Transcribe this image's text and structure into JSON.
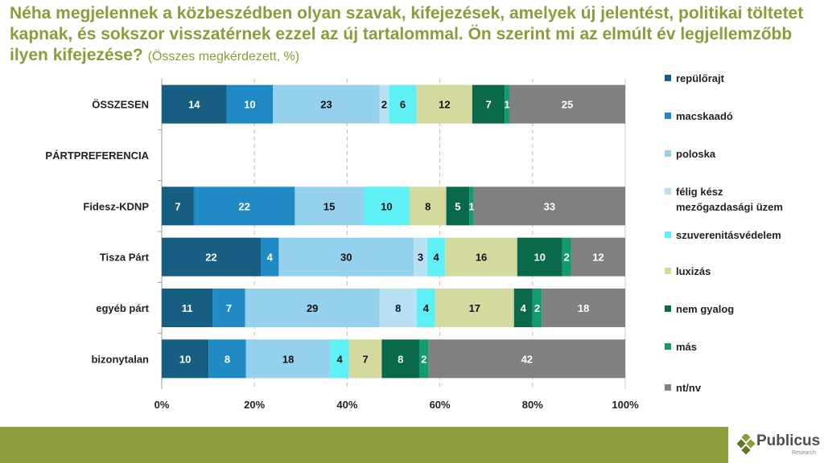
{
  "title": "Néha megjelennek a közbeszédben olyan szavak, kifejezések, amelyek új jelentést, politikai töltetet kapnak, és sokszor visszatérnek ezzel az új tartalommal. Ön szerint mi az elmúlt év legjellemzőbb ilyen kifejezése?",
  "subtitle": "(Összes megkérdezett, %)",
  "logo": {
    "name": "Publicus",
    "sub": "Research"
  },
  "chart_data": {
    "type": "bar",
    "orientation": "horizontal-stacked-100",
    "categories": [
      "ÖSSZESEN",
      "PÁRTPREFERENCIA",
      "Fidesz-KDNP",
      "Tisza Párt",
      "egyéb párt",
      "bizonytalan"
    ],
    "series": [
      {
        "name": "repülőrajt",
        "color": "#165f82",
        "label_color": "#fff",
        "values": [
          14,
          null,
          7,
          22,
          11,
          10
        ]
      },
      {
        "name": "macskaadó",
        "color": "#1f8ac3",
        "label_color": "#fff",
        "values": [
          10,
          null,
          22,
          4,
          7,
          8
        ]
      },
      {
        "name": "poloska",
        "color": "#95d0ec",
        "label_color": "#111",
        "values": [
          23,
          null,
          15,
          30,
          29,
          18
        ]
      },
      {
        "name": "félig kész mezőgazdasági üzem",
        "color": "#b8e0f3",
        "label_color": "#111",
        "values": [
          2,
          null,
          0,
          3,
          8,
          0
        ]
      },
      {
        "name": "szuverenitásvédelem",
        "color": "#5ff0f5",
        "label_color": "#111",
        "values": [
          6,
          null,
          10,
          4,
          4,
          4
        ]
      },
      {
        "name": "luxizás",
        "color": "#d4da9e",
        "label_color": "#111",
        "values": [
          12,
          null,
          8,
          16,
          17,
          7
        ]
      },
      {
        "name": "nem gyalog",
        "color": "#0a694b",
        "label_color": "#fff",
        "values": [
          7,
          null,
          5,
          10,
          4,
          8
        ]
      },
      {
        "name": "más",
        "color": "#129a70",
        "label_color": "#fff",
        "values": [
          1,
          null,
          1,
          2,
          2,
          2
        ]
      },
      {
        "name": "nt/nv",
        "color": "#808080",
        "label_color": "#fff",
        "values": [
          25,
          null,
          33,
          12,
          18,
          42
        ]
      }
    ],
    "xticks": [
      "0%",
      "20%",
      "40%",
      "60%",
      "80%",
      "100%"
    ],
    "xlim": [
      0,
      100
    ],
    "grid": "vertical-dashed",
    "legend": "right"
  }
}
